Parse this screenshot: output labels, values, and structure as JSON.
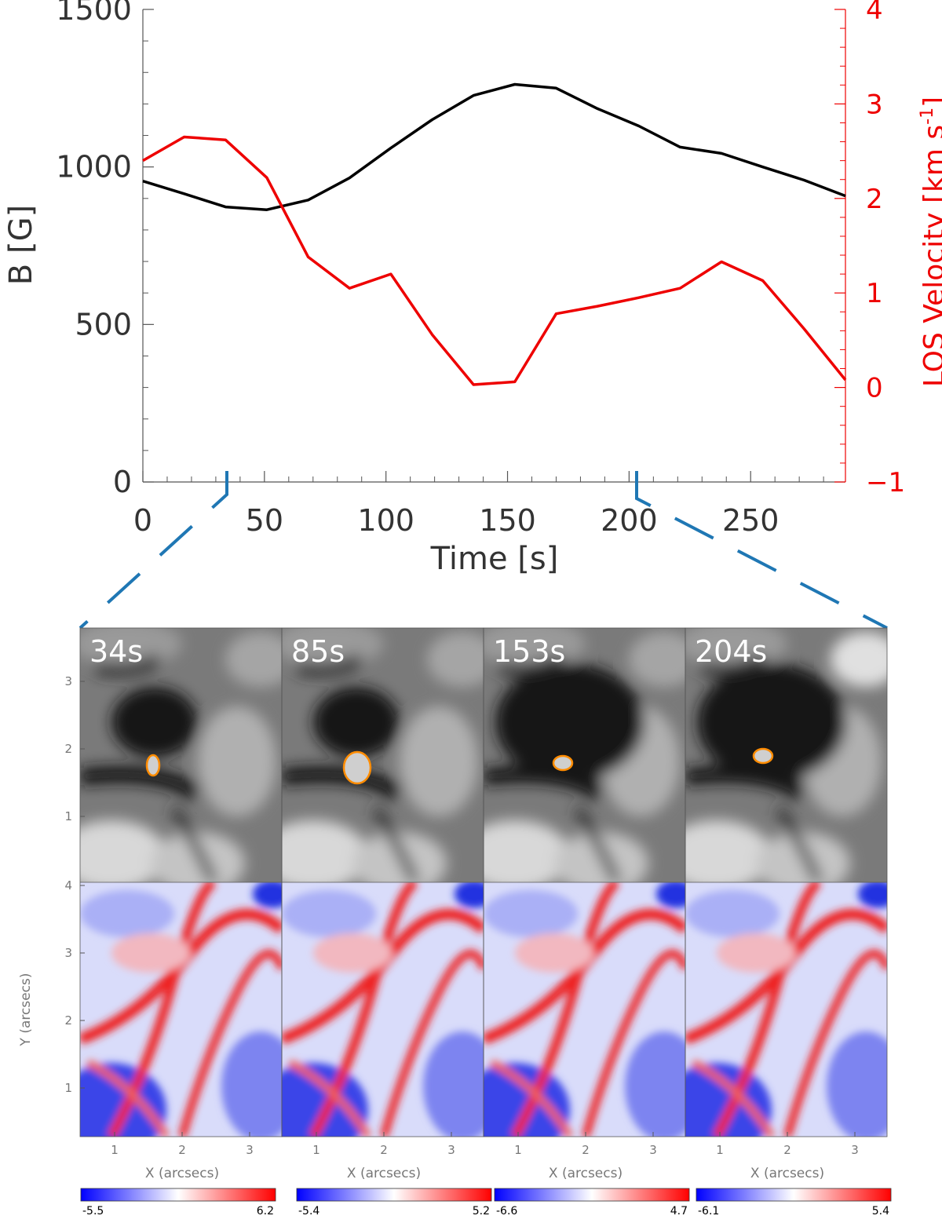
{
  "chart_data": {
    "type": "line",
    "xlabel": "Time [s]",
    "ylabel": "B [G]",
    "ylabel_right": "LOS Velocity [km s",
    "ylabel_right_sup": "-1",
    "ylabel_right_end": "]",
    "xlim": [
      0,
      289
    ],
    "ylim": [
      0,
      1500
    ],
    "ylim_right": [
      -1,
      4
    ],
    "x_ticks": [
      0,
      50,
      100,
      150,
      200,
      250
    ],
    "y_ticks": [
      0,
      500,
      1000,
      1500
    ],
    "y_ticks_right": [
      -1,
      0,
      1,
      2,
      3,
      4
    ],
    "colors": {
      "B": "#000000",
      "velocity": "#ee0000",
      "zoom_lines": "#1f77b4"
    },
    "x": [
      0,
      17,
      34,
      51,
      68,
      85,
      102,
      119,
      136,
      153,
      170,
      187,
      204,
      221,
      238,
      255,
      272,
      289
    ],
    "series": [
      {
        "axis": "left",
        "color": "#000000",
        "values": [
          955,
          915,
          873,
          864,
          895,
          965,
          1060,
          1150,
          1227,
          1262,
          1250,
          1185,
          1130,
          1063,
          1043,
          1000,
          958,
          908
        ]
      },
      {
        "axis": "right",
        "color": "#ee0000",
        "values": [
          2.4,
          2.65,
          2.62,
          2.22,
          1.38,
          1.05,
          1.2,
          0.56,
          0.03,
          0.06,
          0.78,
          0.86,
          0.95,
          1.05,
          1.33,
          1.13,
          0.62,
          0.08
        ]
      }
    ],
    "zoom_markers": [
      34,
      204
    ],
    "panels": {
      "times": [
        "34s",
        "85s",
        "153s",
        "204s"
      ],
      "x_ticks": [
        1,
        2,
        3
      ],
      "y_ticks_top": [
        1,
        2,
        3
      ],
      "y_ticks_bottom": [
        1,
        2,
        3,
        4
      ],
      "xlabel": "X (arcsecs)",
      "ylabel": "Y (arcsecs)",
      "colorbars": [
        {
          "min": "-5.5",
          "max": "6.2"
        },
        {
          "min": "-5.4",
          "max": "5.2"
        },
        {
          "min": "-6.6",
          "max": "4.7"
        },
        {
          "min": "-6.1",
          "max": "5.4"
        }
      ],
      "colormap": {
        "low": "#0000ff",
        "mid": "#ffffff",
        "high": "#ff0000"
      },
      "contour_color": "#ff8c00"
    }
  }
}
